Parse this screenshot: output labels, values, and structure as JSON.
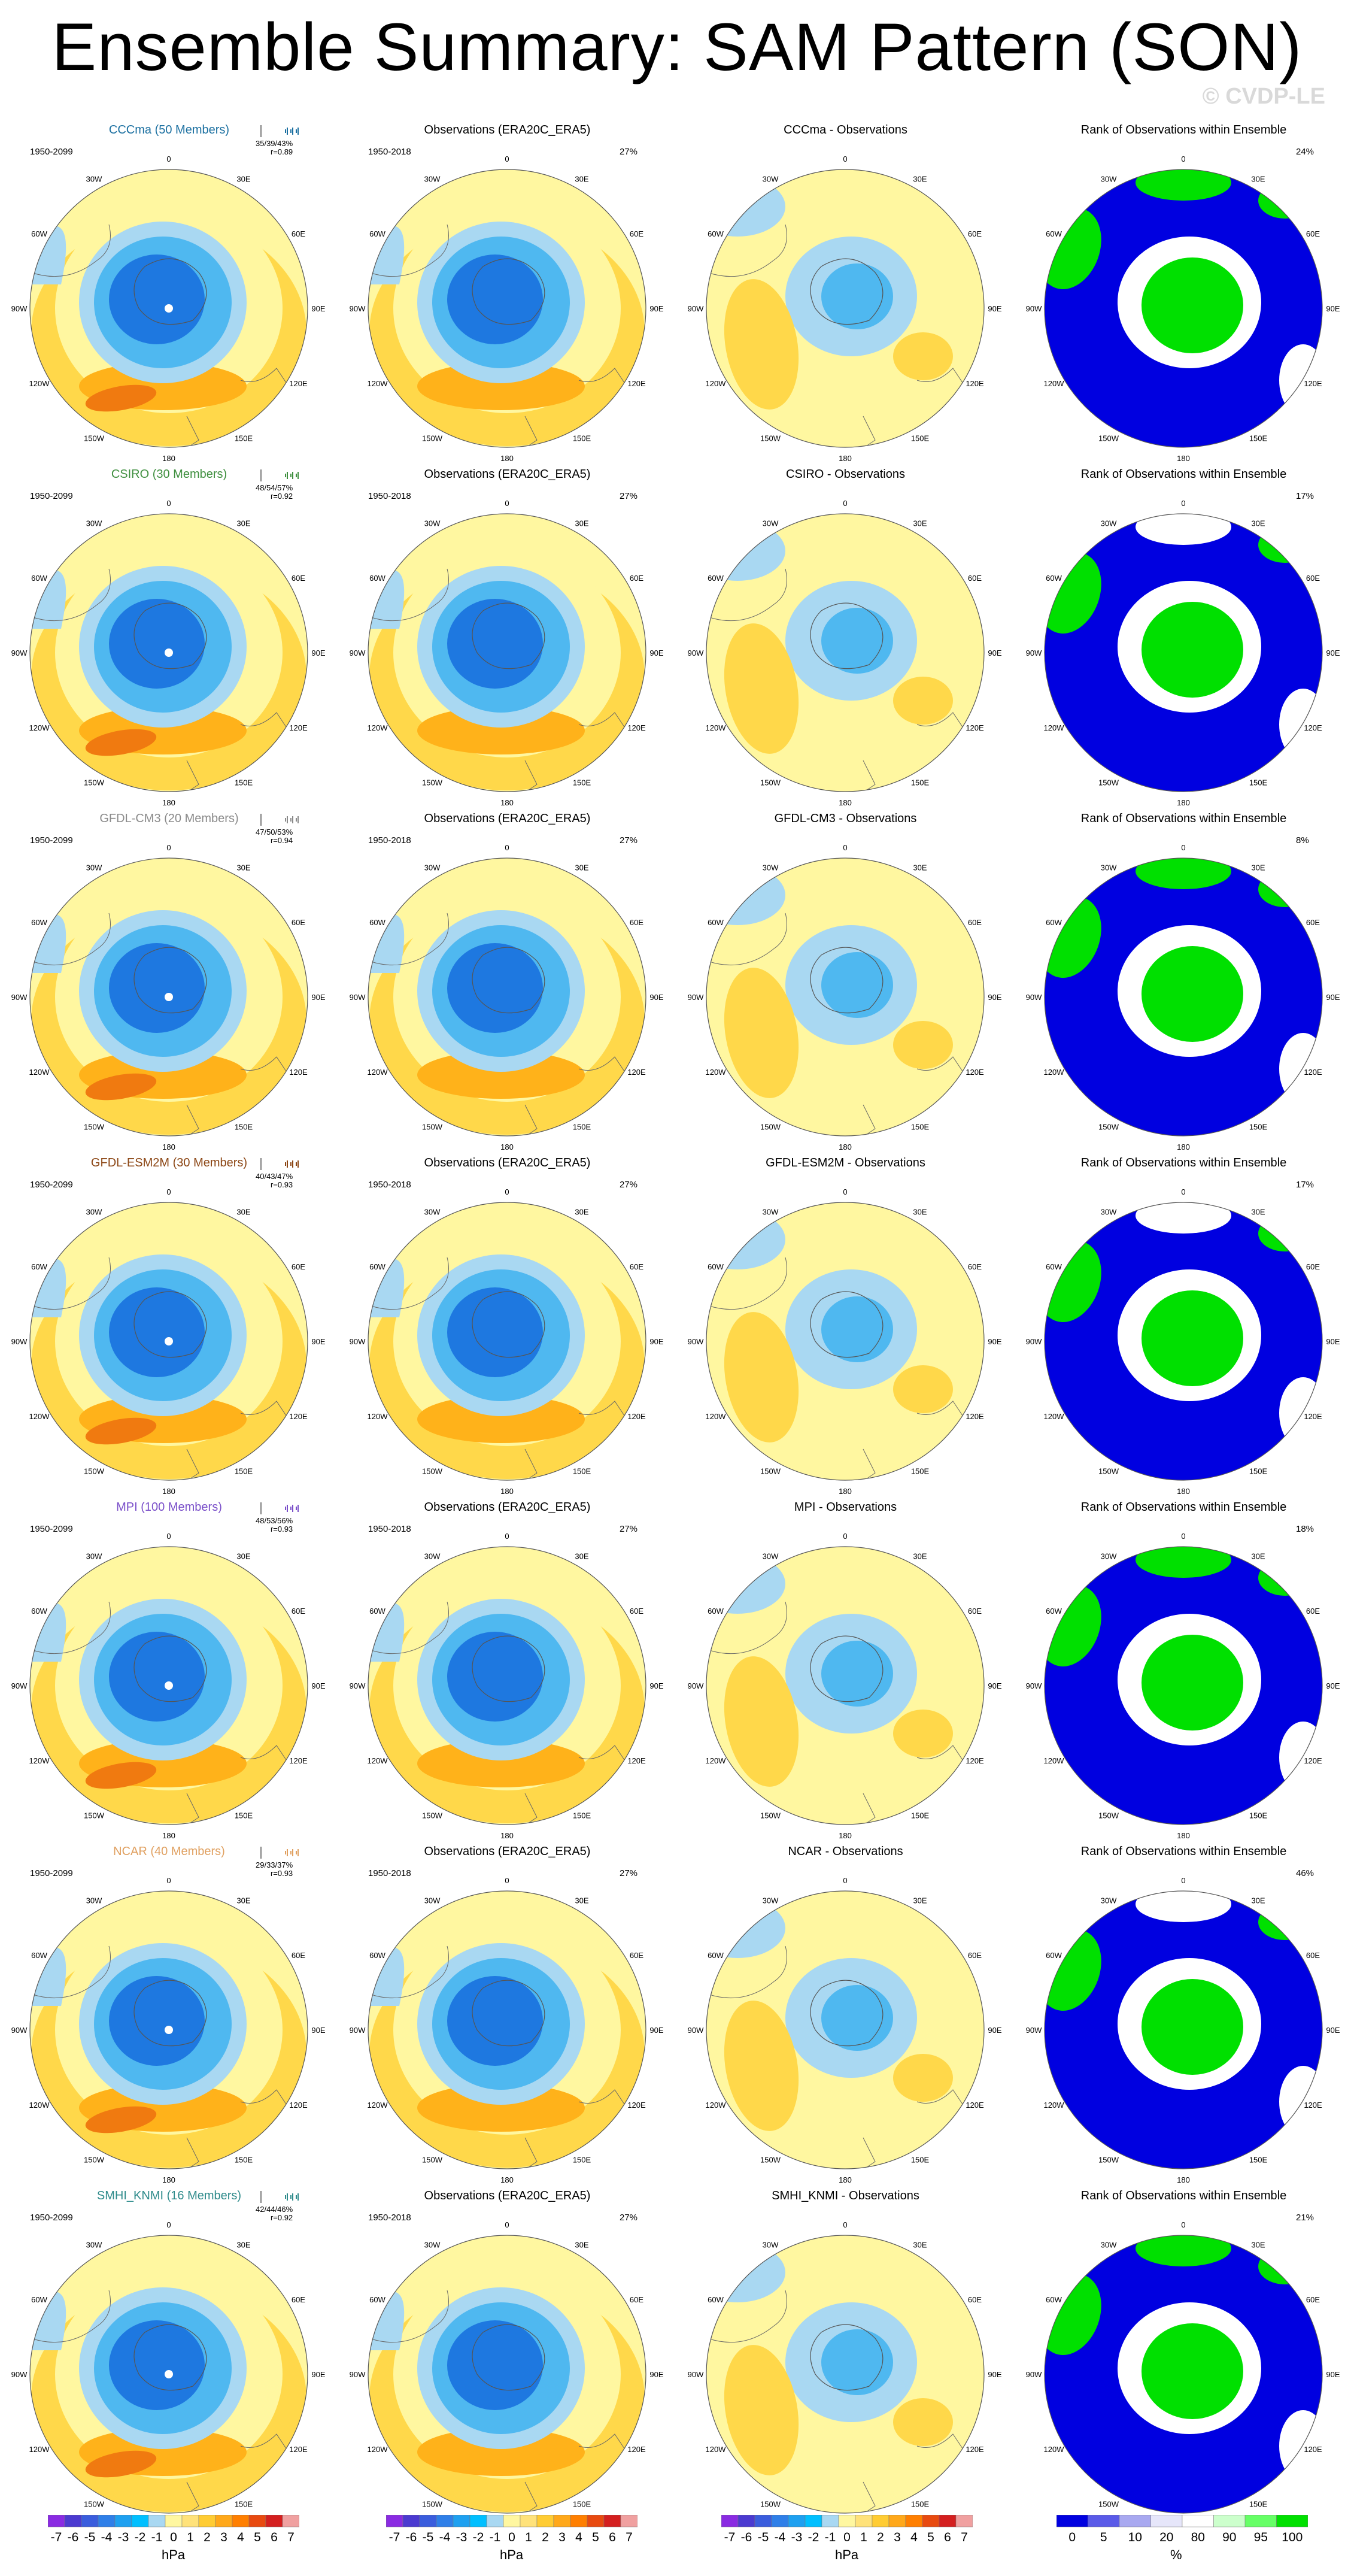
{
  "title": "Ensemble Summary: SAM Pattern (SON)",
  "watermark": "© CVDP-LE",
  "column_titles": {
    "observations": "Observations (ERA20C_ERA5)",
    "rank": "Rank of Observations within Ensemble"
  },
  "obs_period": "1950-2018",
  "obs_percent": "27%",
  "longitude_labels": [
    "0",
    "30E",
    "60E",
    "90E",
    "120E",
    "150E",
    "180",
    "150W",
    "120W",
    "90W",
    "60W",
    "30W"
  ],
  "rows": [
    {
      "model": "CCCma",
      "title": "CCCma (50 Members)",
      "color": "#1a6fa0",
      "period": "1950-2099",
      "stats": "35/39/43%",
      "r": "r=0.89",
      "diff_title": "CCCma - Observations",
      "rank_percent": "24%"
    },
    {
      "model": "CSIRO",
      "title": "CSIRO (30 Members)",
      "color": "#3f8f3f",
      "period": "1950-2099",
      "stats": "48/54/57%",
      "r": "r=0.92",
      "diff_title": "CSIRO - Observations",
      "rank_percent": "17%"
    },
    {
      "model": "GFDL-CM3",
      "title": "GFDL-CM3 (20 Members)",
      "color": "#8a8a8a",
      "period": "1950-2099",
      "stats": "47/50/53%",
      "r": "r=0.94",
      "diff_title": "GFDL-CM3 - Observations",
      "rank_percent": "8%"
    },
    {
      "model": "GFDL-ESM2M",
      "title": "GFDL-ESM2M (30 Members)",
      "color": "#8b4513",
      "period": "1950-2099",
      "stats": "40/43/47%",
      "r": "r=0.93",
      "diff_title": "GFDL-ESM2M - Observations",
      "rank_percent": "17%"
    },
    {
      "model": "MPI",
      "title": "MPI (100 Members)",
      "color": "#7a4fc9",
      "period": "1950-2099",
      "stats": "48/53/56%",
      "r": "r=0.93",
      "diff_title": "MPI - Observations",
      "rank_percent": "18%"
    },
    {
      "model": "NCAR",
      "title": "NCAR (40 Members)",
      "color": "#e0a060",
      "period": "1950-2099",
      "stats": "29/33/37%",
      "r": "r=0.93",
      "diff_title": "NCAR - Observations",
      "rank_percent": "46%"
    },
    {
      "model": "SMHI_KNMI",
      "title": "SMHI_KNMI (16 Members)",
      "color": "#2e8b8b",
      "period": "1950-2099",
      "stats": "42/44/46%",
      "r": "r=0.92",
      "diff_title": "SMHI_KNMI - Observations",
      "rank_percent": "21%"
    }
  ],
  "colorbars": {
    "hpa": {
      "labels": [
        "-7",
        "-6",
        "-5",
        "-4",
        "-3",
        "-2",
        "-1",
        "0",
        "1",
        "2",
        "3",
        "4",
        "5",
        "6",
        "7"
      ],
      "colors": [
        "#8a2be2",
        "#4b3ad0",
        "#3a5ddd",
        "#2f7fe8",
        "#1ea0f0",
        "#00bfff",
        "#a9d8f2",
        "#fff7a0",
        "#ffe27a",
        "#ffcc33",
        "#ffa81a",
        "#ff7f00",
        "#e84a10",
        "#d41f1f",
        "#f0a0a0"
      ],
      "unit": "hPa"
    },
    "pct": {
      "labels": [
        "0",
        "5",
        "10",
        "20",
        "80",
        "90",
        "95",
        "100"
      ],
      "colors": [
        "#0000e0",
        "#5a5ae8",
        "#a8a8f0",
        "#e6e6fa",
        "#ffffff",
        "#ccffcc",
        "#66ff66",
        "#00e000"
      ],
      "unit": "%"
    }
  },
  "colors": {
    "ocean_light": "#fff7a0",
    "negative_weak": "#a9d8f2",
    "negative_mid": "#4fb8f0",
    "negative_strong": "#1e78e0",
    "positive_weak": "#ffd84a",
    "positive_mid": "#ffb21a",
    "positive_strong": "#f07a10",
    "rank_blue": "#0000e0",
    "rank_green": "#00e000"
  }
}
